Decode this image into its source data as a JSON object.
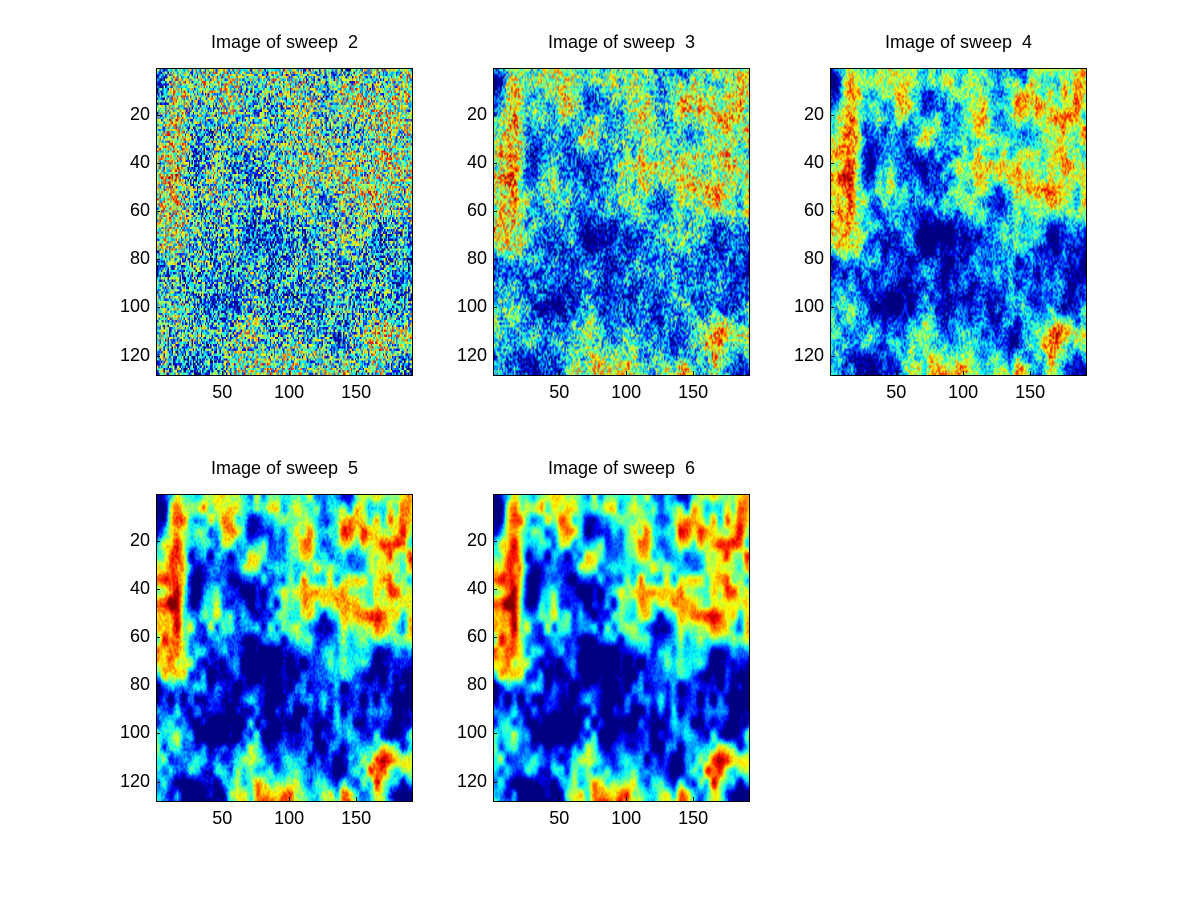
{
  "chart_data": [
    {
      "type": "heatmap",
      "title": "Image of sweep  2",
      "seed": 2,
      "smoothness": 0.0,
      "xlim": [
        1,
        192
      ],
      "ylim": [
        1,
        128
      ],
      "y_direction": "reverse",
      "xticks": [
        50,
        100,
        150
      ],
      "yticks": [
        20,
        40,
        60,
        80,
        100,
        120
      ],
      "colormap": "jet"
    },
    {
      "type": "heatmap",
      "title": "Image of sweep  3",
      "seed": 3,
      "smoothness": 0.45,
      "xlim": [
        1,
        192
      ],
      "ylim": [
        1,
        128
      ],
      "y_direction": "reverse",
      "xticks": [
        50,
        100,
        150
      ],
      "yticks": [
        20,
        40,
        60,
        80,
        100,
        120
      ],
      "colormap": "jet"
    },
    {
      "type": "heatmap",
      "title": "Image of sweep  4",
      "seed": 4,
      "smoothness": 0.65,
      "xlim": [
        1,
        192
      ],
      "ylim": [
        1,
        128
      ],
      "y_direction": "reverse",
      "xticks": [
        50,
        100,
        150
      ],
      "yticks": [
        20,
        40,
        60,
        80,
        100,
        120
      ],
      "colormap": "jet"
    },
    {
      "type": "heatmap",
      "title": "Image of sweep  5",
      "seed": 5,
      "smoothness": 0.85,
      "xlim": [
        1,
        192
      ],
      "ylim": [
        1,
        128
      ],
      "y_direction": "reverse",
      "xticks": [
        50,
        100,
        150
      ],
      "yticks": [
        20,
        40,
        60,
        80,
        100,
        120
      ],
      "colormap": "jet"
    },
    {
      "type": "heatmap",
      "title": "Image of sweep  6",
      "seed": 6,
      "smoothness": 0.9,
      "xlim": [
        1,
        192
      ],
      "ylim": [
        1,
        128
      ],
      "y_direction": "reverse",
      "xticks": [
        50,
        100,
        150
      ],
      "yticks": [
        20,
        40,
        60,
        80,
        100,
        120
      ],
      "colormap": "jet"
    }
  ],
  "colors": {
    "background": "#ffffff",
    "axis": "#000000",
    "text": "#000000"
  }
}
